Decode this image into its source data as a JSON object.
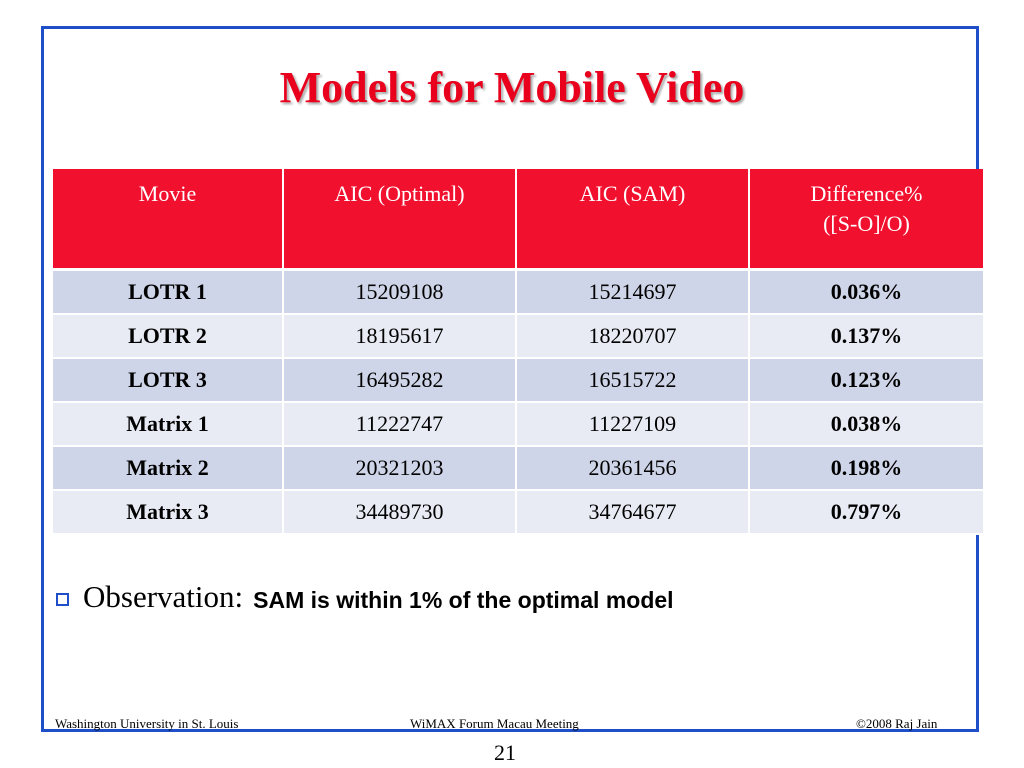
{
  "slide": {
    "title": "Models for Mobile Video",
    "table": {
      "headers": [
        "Movie",
        "AIC (Optimal)",
        "AIC (SAM)",
        "Difference%",
        "([S-O]/O)"
      ],
      "rows": [
        {
          "movie": "LOTR 1",
          "optimal": "15209108",
          "sam": "15214697",
          "diff": "0.036%"
        },
        {
          "movie": "LOTR 2",
          "optimal": "18195617",
          "sam": "18220707",
          "diff": "0.137%"
        },
        {
          "movie": "LOTR 3",
          "optimal": "16495282",
          "sam": "16515722",
          "diff": "0.123%"
        },
        {
          "movie": "Matrix 1",
          "optimal": "11222747",
          "sam": "11227109",
          "diff": "0.038%"
        },
        {
          "movie": "Matrix 2",
          "optimal": "20321203",
          "sam": "20361456",
          "diff": "0.198%"
        },
        {
          "movie": "Matrix 3",
          "optimal": "34489730",
          "sam": "34764677",
          "diff": "0.797%"
        }
      ]
    },
    "observation": {
      "label": "Observation:",
      "text": "SAM is within 1% of the optimal model"
    },
    "footer": {
      "left": "Washington University in St. Louis",
      "center": "WiMAX Forum Macau Meeting",
      "right": "©2008 Raj Jain"
    },
    "page_number": "21"
  },
  "colors": {
    "title": "#e8001c",
    "header_bg": "#f2102f",
    "row_odd": "#cfd5e8",
    "row_even": "#e8ebf4",
    "frame": "#1f4fc8"
  }
}
